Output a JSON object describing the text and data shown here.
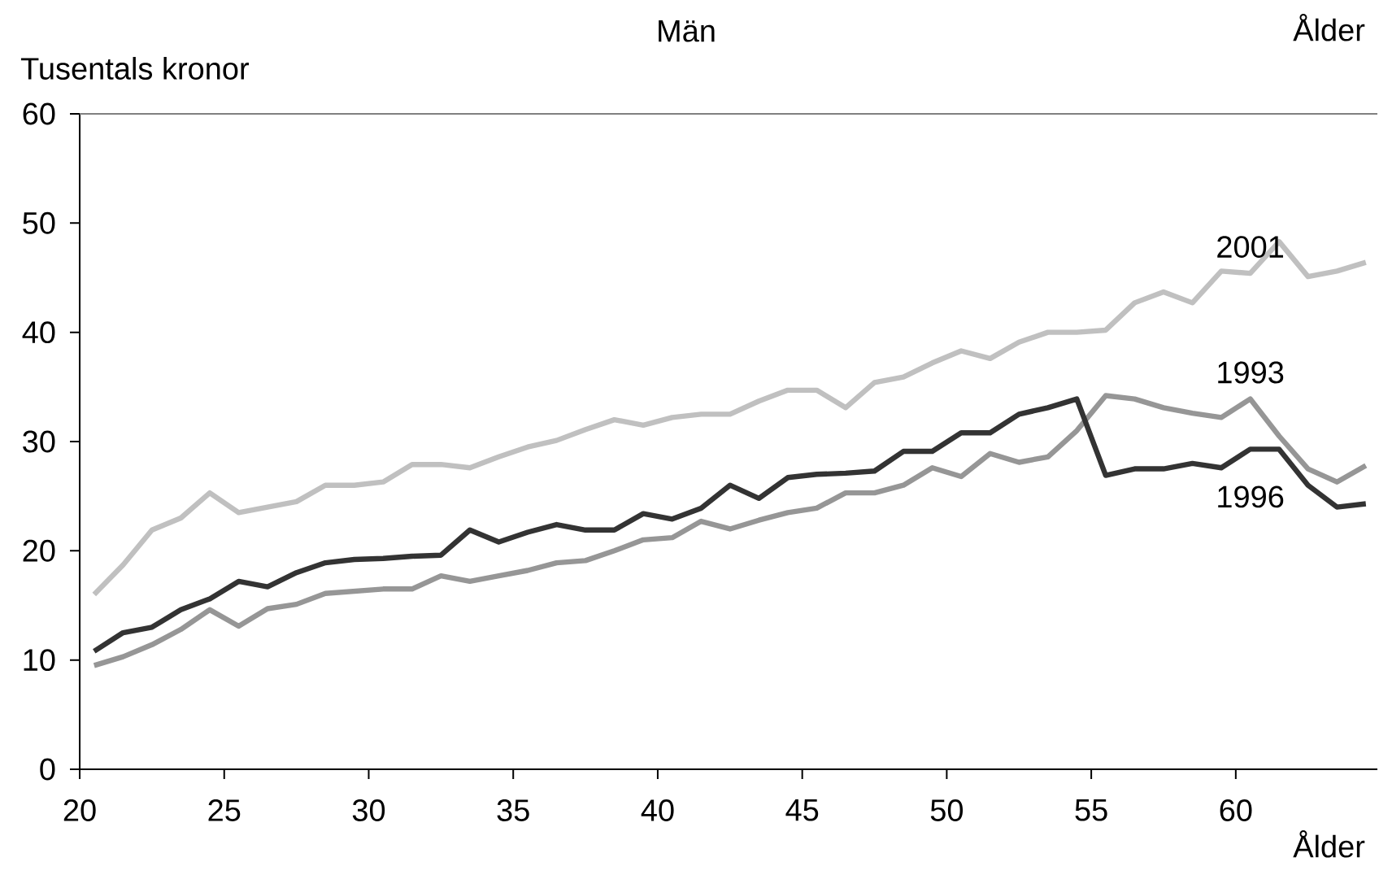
{
  "chart_data": {
    "type": "line",
    "title": "Män",
    "ylabel": "Tusentals  kronor",
    "xlabel": "Ålder",
    "annotations": [
      "Ålder"
    ],
    "x": [
      20.5,
      21.5,
      22.5,
      23.5,
      24.5,
      25.5,
      26.5,
      27.5,
      28.5,
      29.5,
      30.5,
      31.5,
      32.5,
      33.5,
      34.5,
      35.5,
      36.5,
      37.5,
      38.5,
      39.5,
      40.5,
      41.5,
      42.5,
      43.5,
      44.5,
      45.5,
      46.5,
      47.5,
      48.5,
      49.5,
      50.5,
      51.5,
      52.5,
      53.5,
      54.5,
      55.5,
      56.5,
      57.5,
      58.5,
      59.5,
      60.5,
      61.5,
      62.5,
      63.5,
      64.5
    ],
    "series": [
      {
        "name": "2001",
        "color": "#c0c0c0",
        "values": [
          16.0,
          18.7,
          21.9,
          23.0,
          25.3,
          23.5,
          24.0,
          24.5,
          26.0,
          26.0,
          26.3,
          27.9,
          27.9,
          27.6,
          28.6,
          29.5,
          30.1,
          31.1,
          32.0,
          31.5,
          32.2,
          32.5,
          32.5,
          33.7,
          34.7,
          34.7,
          33.1,
          35.4,
          35.9,
          37.2,
          38.3,
          37.6,
          39.1,
          40.0,
          40.0,
          40.2,
          42.7,
          43.7,
          42.7,
          45.6,
          45.4,
          48.3,
          45.1,
          45.6,
          46.4
        ]
      },
      {
        "name": "1993",
        "color": "#969696",
        "values": [
          9.5,
          10.3,
          11.4,
          12.8,
          14.6,
          13.1,
          14.7,
          15.1,
          16.1,
          16.3,
          16.5,
          16.5,
          17.7,
          17.2,
          17.7,
          18.2,
          18.9,
          19.1,
          20.0,
          21.0,
          21.2,
          22.7,
          22.0,
          22.8,
          23.5,
          23.9,
          25.3,
          25.3,
          26.0,
          27.6,
          26.8,
          28.9,
          28.1,
          28.6,
          31.0,
          34.2,
          33.9,
          33.1,
          32.6,
          32.2,
          33.9,
          30.5,
          27.5,
          26.3,
          27.8
        ]
      },
      {
        "name": "1996",
        "color": "#333333",
        "values": [
          10.8,
          12.5,
          13.0,
          14.6,
          15.6,
          17.2,
          16.7,
          18.0,
          18.9,
          19.2,
          19.3,
          19.5,
          19.6,
          21.9,
          20.8,
          21.7,
          22.4,
          21.9,
          21.9,
          23.4,
          22.9,
          23.9,
          26.0,
          24.8,
          26.7,
          27.0,
          27.1,
          27.3,
          29.1,
          29.1,
          30.8,
          30.8,
          32.5,
          33.1,
          33.9,
          26.9,
          27.5,
          27.5,
          28.0,
          27.6,
          29.3,
          29.3,
          26.0,
          24.0,
          24.3
        ]
      }
    ],
    "xlim": [
      20,
      64.9
    ],
    "ylim": [
      0,
      60
    ],
    "xticks": [
      20,
      25,
      30,
      35,
      40,
      45,
      50,
      55,
      60
    ],
    "yticks": [
      0,
      10,
      20,
      30,
      40,
      50,
      60
    ],
    "grid": false,
    "legend": false,
    "marker": "none",
    "line_style": "solid"
  }
}
